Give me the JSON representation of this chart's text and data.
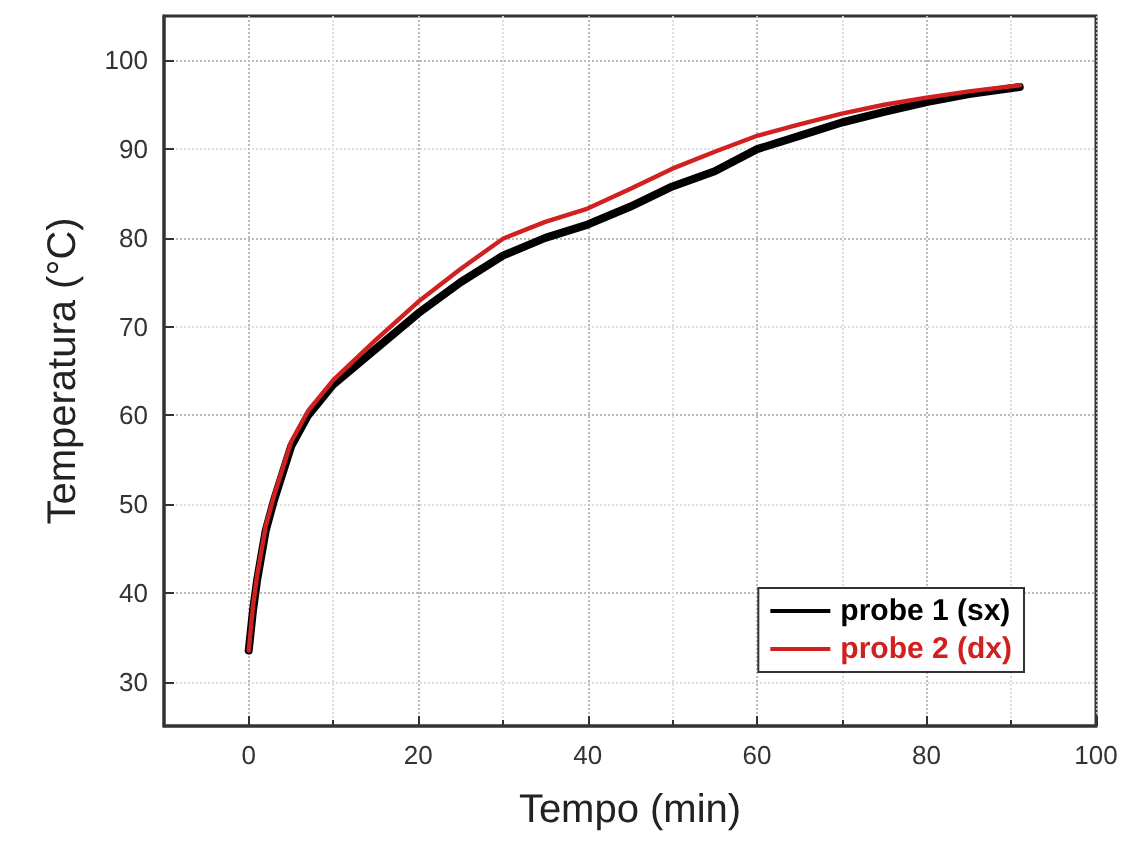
{
  "chart_data": {
    "type": "line",
    "xlabel": "Tempo (min)",
    "ylabel": "Temperatura (°C)",
    "xlim": [
      -10,
      100
    ],
    "xticks": [
      0,
      20,
      40,
      60,
      80,
      100
    ],
    "ylim": [
      25,
      105
    ],
    "yticks": [
      30,
      40,
      50,
      60,
      70,
      80,
      90,
      100
    ],
    "grid": true,
    "legend": "bottom right",
    "marker": "none",
    "line_style": "solid",
    "series": [
      {
        "name": "probe 1 (sx)",
        "color": "#000000",
        "x": [
          0,
          0.5,
          1,
          2,
          3,
          5,
          7,
          10,
          15,
          20,
          25,
          30,
          35,
          40,
          45,
          50,
          55,
          60,
          65,
          70,
          75,
          80,
          85,
          91
        ],
        "values": [
          33.5,
          38,
          41.5,
          47,
          50.5,
          56.5,
          60,
          63.5,
          67.5,
          71.5,
          75,
          78,
          80,
          81.5,
          83.5,
          85.8,
          87.5,
          90,
          91.5,
          93,
          94.2,
          95.3,
          96.2,
          97
        ]
      },
      {
        "name": "probe 2 (dx)",
        "color": "#d02020",
        "x": [
          0,
          0.5,
          1,
          2,
          3,
          5,
          7,
          10,
          15,
          20,
          25,
          30,
          35,
          40,
          45,
          50,
          55,
          60,
          65,
          70,
          75,
          80,
          85,
          91
        ],
        "values": [
          33.5,
          38.5,
          42,
          47.5,
          51,
          57,
          60.5,
          64,
          68.5,
          72.8,
          76.5,
          79.9,
          81.8,
          83.3,
          85.5,
          87.8,
          89.7,
          91.5,
          92.8,
          94,
          95,
          95.8,
          96.5,
          97.2
        ]
      }
    ]
  }
}
